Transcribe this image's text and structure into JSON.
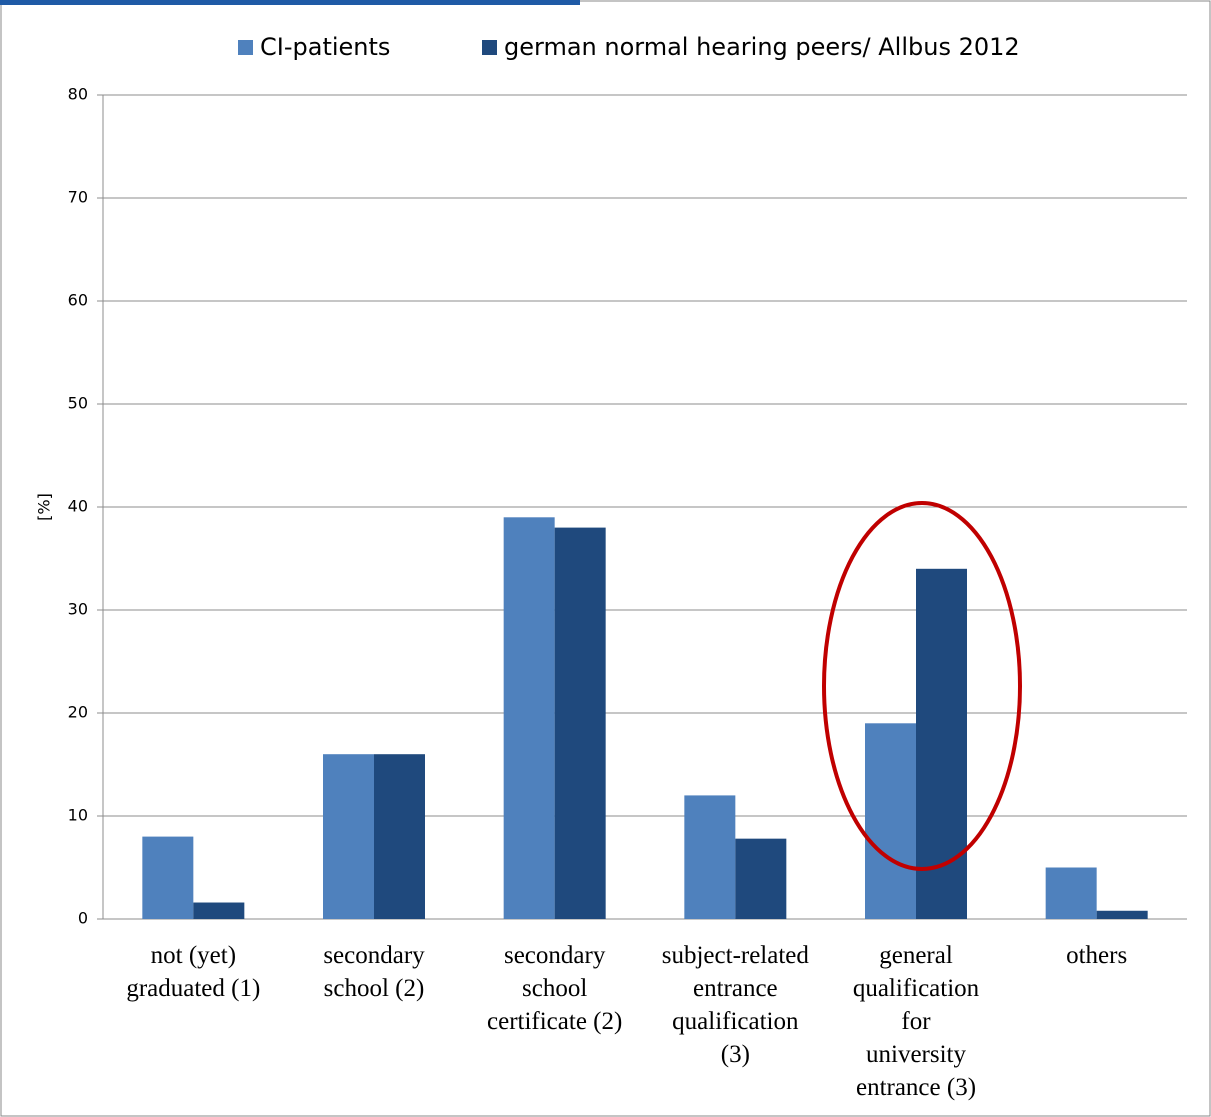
{
  "chart_data": {
    "type": "bar",
    "y_axis_label": "[%]",
    "categories": [
      "not (yet)\ngraduated (1)",
      "secondary\nschool (2)",
      "secondary\nschool\ncertificate (2)",
      "subject-related\nentrance\nqualification\n(3)",
      "general\nqualification\nfor\nuniversity\nentrance (3)",
      "others"
    ],
    "series": [
      {
        "name": "CI-patients",
        "color": "#4f81bd",
        "values": [
          8,
          16,
          39,
          12,
          19,
          5
        ]
      },
      {
        "name": "german normal hearing peers/ Allbus 2012",
        "color": "#1f497d",
        "values": [
          1.6,
          16,
          38,
          7.8,
          34,
          0.8
        ]
      }
    ],
    "ylim": [
      0,
      80
    ],
    "yticks": [
      0,
      10,
      20,
      30,
      40,
      50,
      60,
      70,
      80
    ],
    "grid": true,
    "legend": "top"
  }
}
